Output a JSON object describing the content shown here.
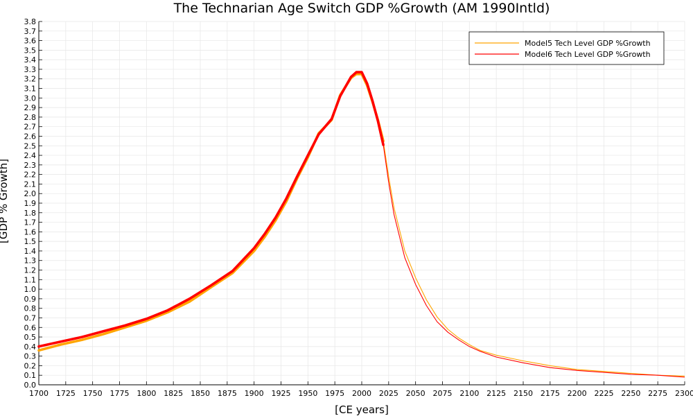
{
  "chart_data": {
    "type": "line",
    "title": "The Technarian Age Switch GDP %Growth (AM 1990Intld)",
    "xlabel": "[CE years]",
    "ylabel": "[GDP % Growth]",
    "xlim": [
      1700,
      2300
    ],
    "ylim": [
      0,
      3.8
    ],
    "x_ticks": [
      "1700",
      "1725",
      "1750",
      "1775",
      "1800",
      "1825",
      "1850",
      "1875",
      "1900",
      "1925",
      "1950",
      "1975",
      "2000",
      "2025",
      "2050",
      "2075",
      "2100",
      "2125",
      "2150",
      "2175",
      "2200",
      "2225",
      "2250",
      "2275",
      "2300"
    ],
    "y_ticks": [
      "0.0",
      "0.1",
      "0.2",
      "0.3",
      "0.4",
      "0.5",
      "0.6",
      "0.7",
      "0.8",
      "0.9",
      "1.0",
      "1.1",
      "1.2",
      "1.3",
      "1.4",
      "1.5",
      "1.6",
      "1.7",
      "1.8",
      "1.9",
      "2.0",
      "2.1",
      "2.2",
      "2.3",
      "2.4",
      "2.5",
      "2.6",
      "2.7",
      "2.8",
      "2.9",
      "3.0",
      "3.1",
      "3.2",
      "3.3",
      "3.4",
      "3.5",
      "3.6",
      "3.7",
      "3.8"
    ],
    "grid": true,
    "legend_position": "top-right",
    "series": [
      {
        "name": "Model5 Tech Level GDP %Growth",
        "color": "#FFA500",
        "x": [
          1700,
          1720,
          1740,
          1760,
          1780,
          1800,
          1820,
          1840,
          1860,
          1880,
          1900,
          1910,
          1920,
          1930,
          1940,
          1950,
          1960,
          1972,
          1980,
          1990,
          1995,
          2000,
          2005,
          2010,
          2015,
          2020,
          2025,
          2030,
          2040,
          2050,
          2060,
          2070,
          2080,
          2090,
          2100,
          2110,
          2125,
          2150,
          2175,
          2200,
          2225,
          2250,
          2275,
          2300
        ],
        "y": [
          0.36,
          0.42,
          0.47,
          0.53,
          0.6,
          0.67,
          0.76,
          0.87,
          1.02,
          1.17,
          1.4,
          1.55,
          1.72,
          1.92,
          2.16,
          2.38,
          2.63,
          2.77,
          3.03,
          3.21,
          3.25,
          3.25,
          3.13,
          2.96,
          2.77,
          2.55,
          2.18,
          1.85,
          1.4,
          1.12,
          0.89,
          0.71,
          0.58,
          0.49,
          0.42,
          0.36,
          0.31,
          0.25,
          0.2,
          0.16,
          0.14,
          0.12,
          0.1,
          0.09
        ],
        "thick_until": 2020
      },
      {
        "name": "Model6 Tech Level GDP %Growth",
        "color": "#FF0000",
        "x": [
          1700,
          1720,
          1740,
          1760,
          1780,
          1800,
          1820,
          1840,
          1860,
          1880,
          1900,
          1910,
          1920,
          1930,
          1940,
          1950,
          1960,
          1972,
          1980,
          1990,
          1995,
          2000,
          2005,
          2010,
          2015,
          2020,
          2025,
          2030,
          2040,
          2050,
          2060,
          2070,
          2080,
          2090,
          2100,
          2110,
          2125,
          2150,
          2175,
          2200,
          2225,
          2250,
          2275,
          2300
        ],
        "y": [
          0.4,
          0.45,
          0.5,
          0.56,
          0.62,
          0.69,
          0.78,
          0.9,
          1.04,
          1.19,
          1.43,
          1.58,
          1.75,
          1.95,
          2.18,
          2.4,
          2.62,
          2.78,
          3.02,
          3.22,
          3.27,
          3.27,
          3.15,
          2.97,
          2.76,
          2.51,
          2.12,
          1.78,
          1.33,
          1.05,
          0.83,
          0.66,
          0.55,
          0.47,
          0.4,
          0.35,
          0.29,
          0.23,
          0.18,
          0.15,
          0.13,
          0.11,
          0.1,
          0.08
        ],
        "thick_until": 2020
      }
    ]
  }
}
